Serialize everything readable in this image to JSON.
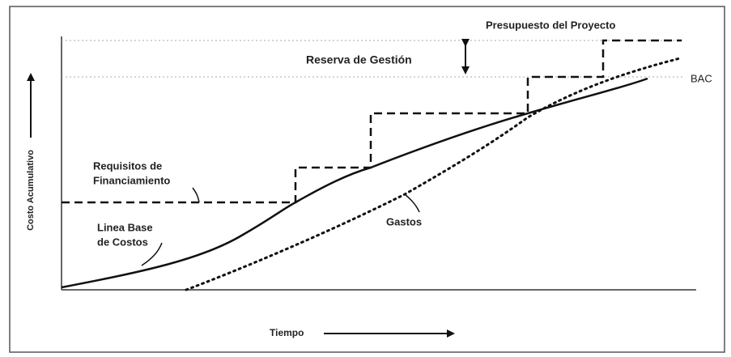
{
  "diagram": {
    "budget_label": "Presupuesto del Proyecto",
    "reserve_label": "Reserva de Gestión",
    "bac_label": "BAC",
    "funding_label": [
      "Requisitos de",
      "Financiamiento"
    ],
    "spend_label": "Gastos",
    "baseline_label": [
      "Linea Base",
      "de Costos"
    ],
    "y_axis_label": "Costo Acumulativo",
    "x_axis_label": "Tiempo"
  }
}
